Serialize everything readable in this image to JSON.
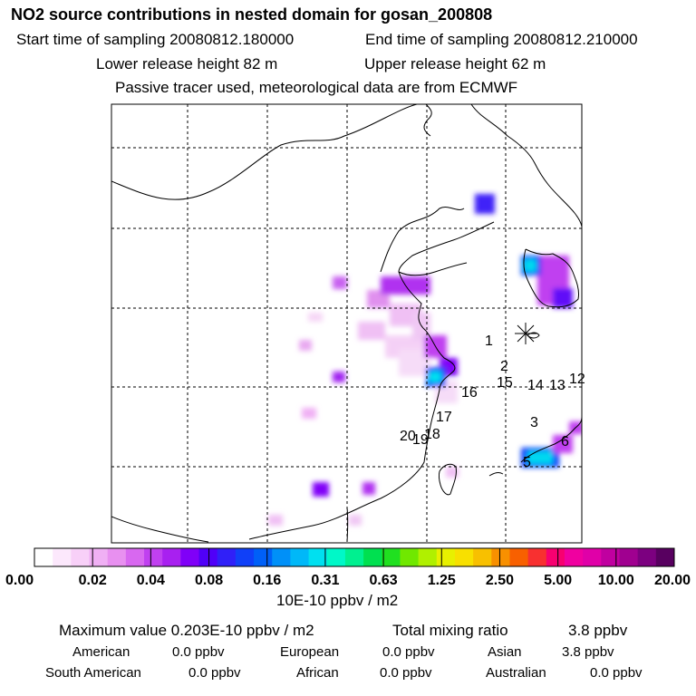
{
  "header": {
    "title": "NO2 source contributions in nested domain for gosan_200808",
    "start_time": "Start time of sampling 20080812.180000",
    "end_time": "End time of sampling 20080812.210000",
    "lower_release": "Lower release height   82 m",
    "upper_release": "Upper release height   62 m",
    "tracer_note": "Passive tracer used, meteorological data are from ECMWF"
  },
  "map": {
    "receptor_symbol": "asterisk",
    "labels": [
      "1",
      "2",
      "15",
      "14",
      "13",
      "12",
      "16",
      "17",
      "3",
      "20",
      "19",
      "18",
      "6",
      "5"
    ],
    "colorbar": {
      "colors": [
        "#ffffff",
        "#fce8fc",
        "#f8d0f8",
        "#f0b0f4",
        "#e890f0",
        "#d868f0",
        "#c040f0",
        "#a820f0",
        "#8000f8",
        "#5000f8",
        "#3020f8",
        "#1040f8",
        "#0060f8",
        "#0090f8",
        "#00b8f8",
        "#00e0f0",
        "#00f8c8",
        "#00f090",
        "#00e050",
        "#20e020",
        "#70e800",
        "#b0f000",
        "#e8f000",
        "#f8e000",
        "#f8c000",
        "#f89000",
        "#f86000",
        "#f83030",
        "#f80070",
        "#f000a0",
        "#e000a8",
        "#c000a0",
        "#a00090",
        "#7c0080",
        "#580060"
      ],
      "tick_labels": [
        "0.00",
        "0.02",
        "0.04",
        "0.08",
        "0.16",
        "0.31",
        "0.63",
        "1.25",
        "2.50",
        "5.00",
        "10.00",
        "20.00"
      ]
    }
  },
  "units": "10E-10 ppbv / m2",
  "summary": {
    "max_label": "Maximum value  0.203E-10 ppbv / m2",
    "total_label": "Total mixing ratio",
    "total_value": "3.8 ppbv",
    "regions": [
      {
        "name": "American",
        "value": "0.0 ppbv"
      },
      {
        "name": "European",
        "value": "0.0 ppbv"
      },
      {
        "name": "Asian",
        "value": "3.8 ppbv"
      },
      {
        "name": "South American",
        "value": "0.0 ppbv"
      },
      {
        "name": "African",
        "value": "0.0 ppbv"
      },
      {
        "name": "Australian",
        "value": "0.0 ppbv"
      }
    ]
  }
}
